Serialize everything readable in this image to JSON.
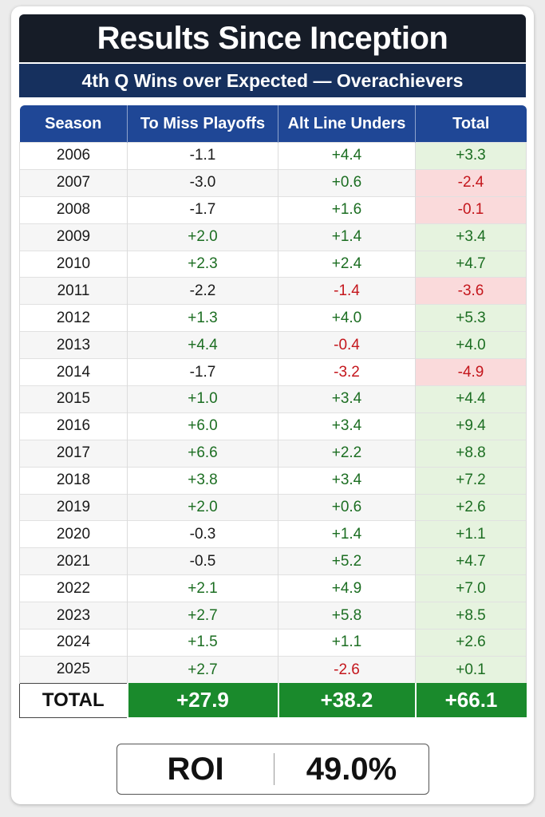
{
  "title": "Results Since Inception",
  "subtitle": "4th Q Wins over Expected — Overachievers",
  "headers": [
    "Season",
    "To Miss Playoffs",
    "Alt Line Unders",
    "Total"
  ],
  "rows": [
    {
      "season": "2006",
      "miss": "-1.1",
      "alt": "+4.4",
      "total": "+3.3"
    },
    {
      "season": "2007",
      "miss": "-3.0",
      "alt": "+0.6",
      "total": "-2.4"
    },
    {
      "season": "2008",
      "miss": "-1.7",
      "alt": "+1.6",
      "total": "-0.1"
    },
    {
      "season": "2009",
      "miss": "+2.0",
      "alt": "+1.4",
      "total": "+3.4"
    },
    {
      "season": "2010",
      "miss": "+2.3",
      "alt": "+2.4",
      "total": "+4.7"
    },
    {
      "season": "2011",
      "miss": "-2.2",
      "alt": "-1.4",
      "total": "-3.6"
    },
    {
      "season": "2012",
      "miss": "+1.3",
      "alt": "+4.0",
      "total": "+5.3"
    },
    {
      "season": "2013",
      "miss": "+4.4",
      "alt": "-0.4",
      "total": "+4.0"
    },
    {
      "season": "2014",
      "miss": "-1.7",
      "alt": "-3.2",
      "total": "-4.9"
    },
    {
      "season": "2015",
      "miss": "+1.0",
      "alt": "+3.4",
      "total": "+4.4"
    },
    {
      "season": "2016",
      "miss": "+6.0",
      "alt": "+3.4",
      "total": "+9.4"
    },
    {
      "season": "2017",
      "miss": "+6.6",
      "alt": "+2.2",
      "total": "+8.8"
    },
    {
      "season": "2018",
      "miss": "+3.8",
      "alt": "+3.4",
      "total": "+7.2"
    },
    {
      "season": "2019",
      "miss": "+2.0",
      "alt": "+0.6",
      "total": "+2.6"
    },
    {
      "season": "2020",
      "miss": "-0.3",
      "alt": "+1.4",
      "total": "+1.1"
    },
    {
      "season": "2021",
      "miss": "-0.5",
      "alt": "+5.2",
      "total": "+4.7"
    },
    {
      "season": "2022",
      "miss": "+2.1",
      "alt": "+4.9",
      "total": "+7.0"
    },
    {
      "season": "2023",
      "miss": "+2.7",
      "alt": "+5.8",
      "total": "+8.5"
    },
    {
      "season": "2024",
      "miss": "+1.5",
      "alt": "+1.1",
      "total": "+2.6"
    },
    {
      "season": "2025",
      "miss": "+2.7",
      "alt": "-2.6",
      "total": "+0.1"
    }
  ],
  "totals": {
    "label": "TOTAL",
    "miss": "+27.9",
    "alt": "+38.2",
    "total": "+66.1"
  },
  "roi": {
    "label": "ROI",
    "value": "49.0%"
  },
  "colors": {
    "title_bg": "#161c27",
    "subtitle_bg": "#16305e",
    "header_bg": "#1f4796",
    "positive": "#1c6e22",
    "negative": "#c4161c",
    "positive_cell": "#e6f3df",
    "negative_cell": "#fadadb",
    "total_bg": "#1a8a2c"
  }
}
